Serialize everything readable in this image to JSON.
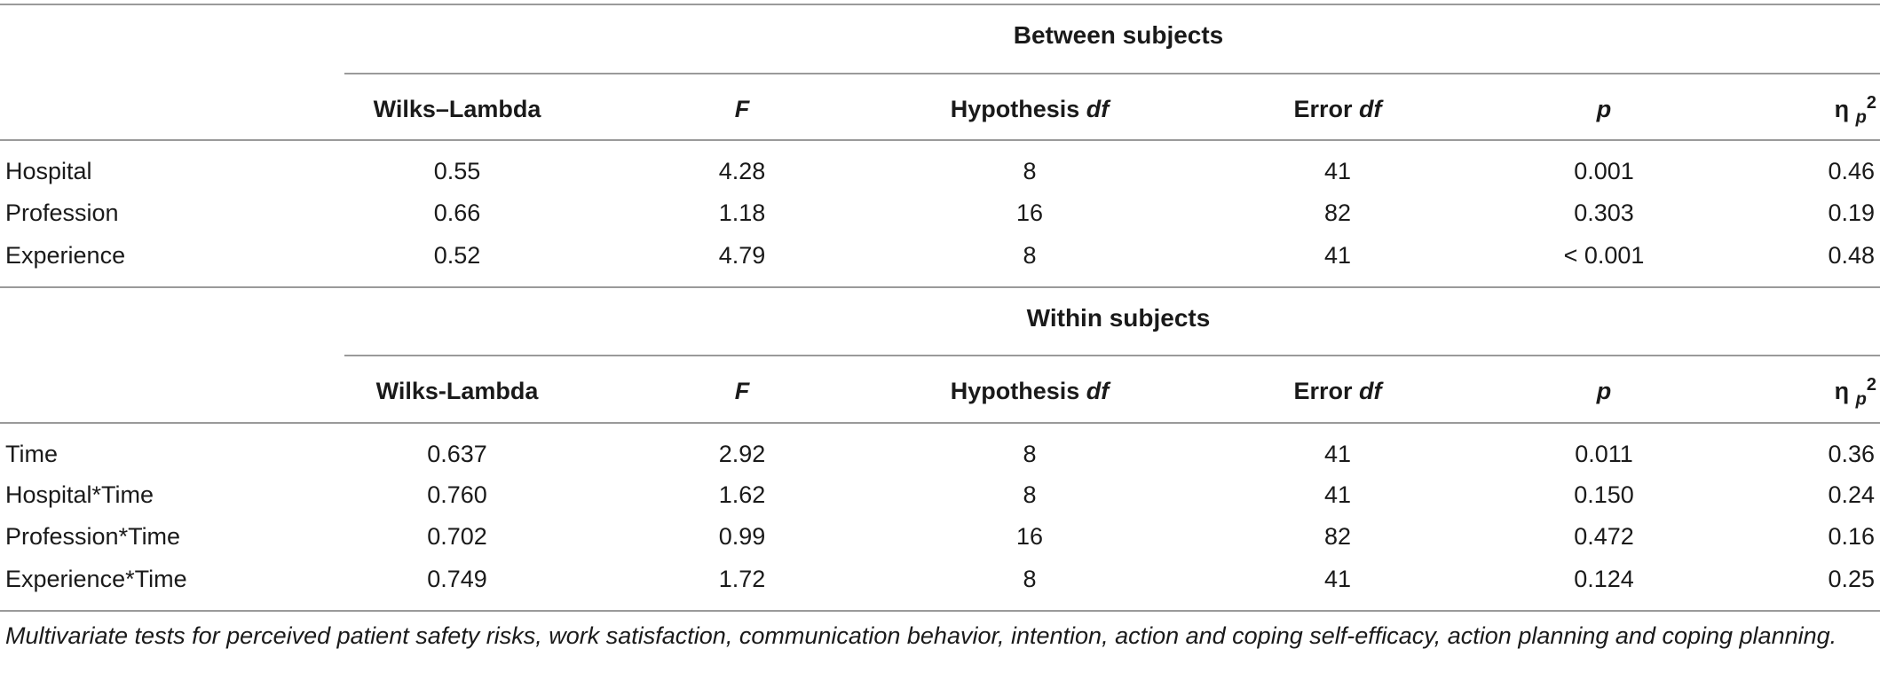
{
  "between": {
    "title": "Between subjects",
    "columns": {
      "c1": "Wilks–Lambda",
      "c2": "F",
      "c3a": "Hypothesis ",
      "c3b": "df",
      "c4a": "Error ",
      "c4b": "df",
      "c5": "p",
      "c6a": "η ",
      "c6b": "p",
      "c6c": "2"
    },
    "rows": [
      {
        "label": "Hospital",
        "v1": "0.55",
        "v2": "4.28",
        "v3": "8",
        "v4": "41",
        "v5": "0.001",
        "v6": "0.46"
      },
      {
        "label": "Profession",
        "v1": "0.66",
        "v2": "1.18",
        "v3": "16",
        "v4": "82",
        "v5": "0.303",
        "v6": "0.19"
      },
      {
        "label": "Experience",
        "v1": "0.52",
        "v2": "4.79",
        "v3": "8",
        "v4": "41",
        "v5": "< 0.001",
        "v6": "0.48"
      }
    ]
  },
  "within": {
    "title": "Within subjects",
    "columns": {
      "c1": "Wilks-Lambda",
      "c2": "F",
      "c3a": "Hypothesis ",
      "c3b": "df",
      "c4a": "Error ",
      "c4b": "df",
      "c5": "p",
      "c6a": "η ",
      "c6b": "p",
      "c6c": "2"
    },
    "rows": [
      {
        "label": "Time",
        "v1": "0.637",
        "v2": "2.92",
        "v3": "8",
        "v4": "41",
        "v5": "0.011",
        "v6": "0.36"
      },
      {
        "label": "Hospital*Time",
        "v1": "0.760",
        "v2": "1.62",
        "v3": "8",
        "v4": "41",
        "v5": "0.150",
        "v6": "0.24"
      },
      {
        "label": "Profession*Time",
        "v1": "0.702",
        "v2": "0.99",
        "v3": "16",
        "v4": "82",
        "v5": "0.472",
        "v6": "0.16"
      },
      {
        "label": "Experience*Time",
        "v1": "0.749",
        "v2": "1.72",
        "v3": "8",
        "v4": "41",
        "v5": "0.124",
        "v6": "0.25"
      }
    ]
  },
  "footnote": "Multivariate tests for perceived patient safety risks, work satisfaction, communication behavior, intention, action and coping self-efficacy, action planning and coping planning."
}
